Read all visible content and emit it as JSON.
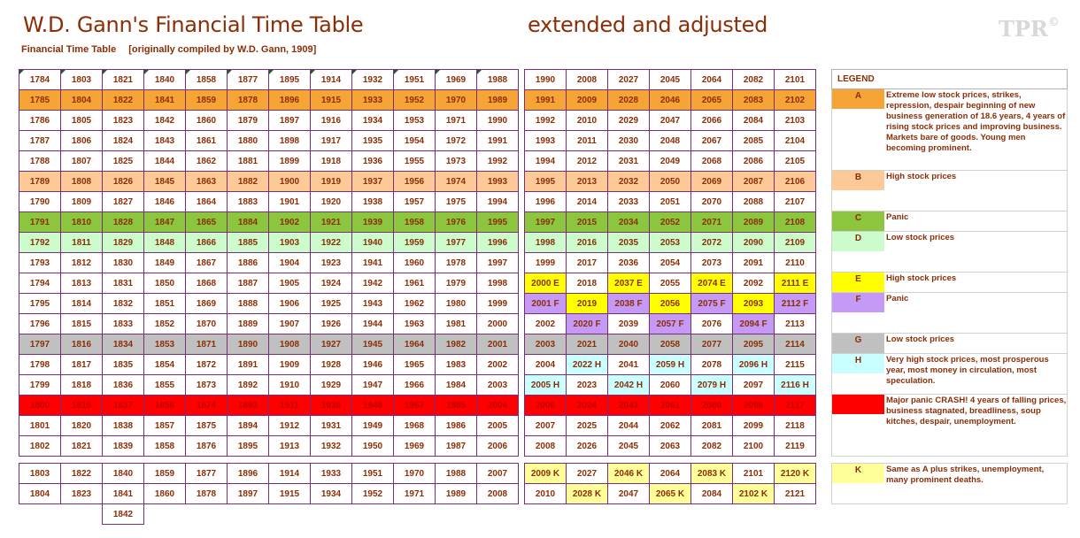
{
  "header": {
    "title": "W.D. Gann's Financial Time Table",
    "subtitle": "extended and adjusted",
    "caption_left": "Financial Time Table",
    "caption_right": "[originally compiled by W.D. Gann, 1909]",
    "logo": "TPR",
    "logo_mark": "©"
  },
  "colors": {
    "A": "#f7a436",
    "B": "#fcc997",
    "C": "#8cc63e",
    "D": "#ccfbcc",
    "E": "#ffff00",
    "F": "#c49af6",
    "G": "#c0c0c0",
    "H": "#c9ffff",
    "red": "#ff0000",
    "K": "#ffff99"
  },
  "left_table": {
    "rows": [
      {
        "cells": [
          "1784",
          "1803",
          "1821",
          "1840",
          "1858",
          "1877",
          "1895",
          "1914",
          "1932",
          "1951",
          "1969",
          "1988"
        ]
      },
      {
        "cells": [
          "1785",
          "1804",
          "1822",
          "1841",
          "1859",
          "1878",
          "1896",
          "1915",
          "1933",
          "1952",
          "1970",
          "1989"
        ]
      },
      {
        "cells": [
          "1786",
          "1805",
          "1823",
          "1842",
          "1860",
          "1879",
          "1897",
          "1916",
          "1934",
          "1953",
          "1971",
          "1990"
        ]
      },
      {
        "cells": [
          "1787",
          "1806",
          "1824",
          "1843",
          "1861",
          "1880",
          "1898",
          "1917",
          "1935",
          "1954",
          "1972",
          "1991"
        ]
      },
      {
        "cells": [
          "1788",
          "1807",
          "1825",
          "1844",
          "1862",
          "1881",
          "1899",
          "1918",
          "1936",
          "1955",
          "1973",
          "1992"
        ]
      },
      {
        "cells": [
          "1789",
          "1808",
          "1826",
          "1845",
          "1863",
          "1882",
          "1900",
          "1919",
          "1937",
          "1956",
          "1974",
          "1993"
        ]
      },
      {
        "cells": [
          "1790",
          "1809",
          "1827",
          "1846",
          "1864",
          "1883",
          "1901",
          "1920",
          "1938",
          "1957",
          "1975",
          "1994"
        ]
      },
      {
        "cells": [
          "1791",
          "1810",
          "1828",
          "1847",
          "1865",
          "1884",
          "1902",
          "1921",
          "1939",
          "1958",
          "1976",
          "1995"
        ]
      },
      {
        "cells": [
          "1792",
          "1811",
          "1829",
          "1848",
          "1866",
          "1885",
          "1903",
          "1922",
          "1940",
          "1959",
          "1977",
          "1996"
        ]
      },
      {
        "cells": [
          "1793",
          "1812",
          "1830",
          "1849",
          "1867",
          "1886",
          "1904",
          "1923",
          "1941",
          "1960",
          "1978",
          "1997"
        ]
      },
      {
        "cells": [
          "1794",
          "1813",
          "1831",
          "1850",
          "1868",
          "1887",
          "1905",
          "1924",
          "1942",
          "1961",
          "1979",
          "1998"
        ]
      },
      {
        "cells": [
          "1795",
          "1814",
          "1832",
          "1851",
          "1869",
          "1888",
          "1906",
          "1925",
          "1943",
          "1962",
          "1980",
          "1999"
        ]
      },
      {
        "cells": [
          "1796",
          "1815",
          "1833",
          "1852",
          "1870",
          "1889",
          "1907",
          "1926",
          "1944",
          "1963",
          "1981",
          "2000"
        ]
      },
      {
        "cells": [
          "1797",
          "1816",
          "1834",
          "1853",
          "1871",
          "1890",
          "1908",
          "1927",
          "1945",
          "1964",
          "1982",
          "2001"
        ]
      },
      {
        "cells": [
          "1798",
          "1817",
          "1835",
          "1854",
          "1872",
          "1891",
          "1909",
          "1928",
          "1946",
          "1965",
          "1983",
          "2002"
        ]
      },
      {
        "cells": [
          "1799",
          "1818",
          "1836",
          "1855",
          "1873",
          "1892",
          "1910",
          "1929",
          "1947",
          "1966",
          "1984",
          "2003"
        ]
      },
      {
        "cells": [
          "1800",
          "1819",
          "1837",
          "1856",
          "1874",
          "1893",
          "1911",
          "1930",
          "1948",
          "1967",
          "1985",
          "2004"
        ]
      },
      {
        "cells": [
          "1801",
          "1820",
          "1838",
          "1857",
          "1875",
          "1894",
          "1912",
          "1931",
          "1949",
          "1968",
          "1986",
          "2005"
        ]
      },
      {
        "cells": [
          "1802",
          "1821",
          "1839",
          "1858",
          "1876",
          "1895",
          "1913",
          "1932",
          "1950",
          "1969",
          "1987",
          "2006"
        ]
      }
    ],
    "bottom_rows": [
      {
        "cells": [
          "1803",
          "1822",
          "1840",
          "1859",
          "1877",
          "1896",
          "1914",
          "1933",
          "1951",
          "1970",
          "1988",
          "2007"
        ]
      },
      {
        "cells": [
          "1804",
          "1823",
          "1841",
          "1860",
          "1878",
          "1897",
          "1915",
          "1934",
          "1952",
          "1971",
          "1989",
          "2008"
        ]
      },
      {
        "cells": [
          "",
          "",
          "1842",
          "",
          "",
          "",
          "",
          "",
          "",
          "",
          "",
          ""
        ]
      }
    ]
  },
  "right_table": {
    "rows": [
      {
        "cells": [
          "1990",
          "2008",
          "2027",
          "2045",
          "2064",
          "2082",
          "2101"
        ]
      },
      {
        "cells": [
          "1991",
          "2009",
          "2028",
          "2046",
          "2065",
          "2083",
          "2102"
        ]
      },
      {
        "cells": [
          "1992",
          "2010",
          "2029",
          "2047",
          "2066",
          "2084",
          "2103"
        ]
      },
      {
        "cells": [
          "1993",
          "2011",
          "2030",
          "2048",
          "2067",
          "2085",
          "2104"
        ]
      },
      {
        "cells": [
          "1994",
          "2012",
          "2031",
          "2049",
          "2068",
          "2086",
          "2105"
        ]
      },
      {
        "cells": [
          "1995",
          "2013",
          "2032",
          "2050",
          "2069",
          "2087",
          "2106"
        ]
      },
      {
        "cells": [
          "1996",
          "2014",
          "2033",
          "2051",
          "2070",
          "2088",
          "2107"
        ]
      },
      {
        "cells": [
          "1997",
          "2015",
          "2034",
          "2052",
          "2071",
          "2089",
          "2108"
        ]
      },
      {
        "cells": [
          "1998",
          "2016",
          "2035",
          "2053",
          "2072",
          "2090",
          "2109"
        ]
      },
      {
        "cells": [
          "1999",
          "2017",
          "2036",
          "2054",
          "2073",
          "2091",
          "2110"
        ]
      },
      {
        "cells": [
          "2000 E",
          "2018",
          "2037 E",
          "2055",
          "2074 E",
          "2092",
          "2111 E"
        ]
      },
      {
        "cells": [
          "2001 F",
          "2019",
          "2038 F",
          "2056",
          "2075 F",
          "2093",
          "2112 F"
        ]
      },
      {
        "cells": [
          "2002",
          "2020 F",
          "2039",
          "2057 F",
          "2076",
          "2094 F",
          "2113"
        ]
      },
      {
        "cells": [
          "2003",
          "2021",
          "2040",
          "2058",
          "2077",
          "2095",
          "2114"
        ]
      },
      {
        "cells": [
          "2004",
          "2022 H",
          "2041",
          "2059 H",
          "2078",
          "2096 H",
          "2115"
        ]
      },
      {
        "cells": [
          "2005 H",
          "2023",
          "2042 H",
          "2060",
          "2079 H",
          "2097",
          "2116 H"
        ]
      },
      {
        "cells": [
          "2006",
          "2024",
          "2043",
          "2061",
          "2080",
          "2098",
          "2117"
        ]
      },
      {
        "cells": [
          "2007",
          "2025",
          "2044",
          "2062",
          "2081",
          "2099",
          "2118"
        ]
      },
      {
        "cells": [
          "2008",
          "2026",
          "2045",
          "2063",
          "2082",
          "2100",
          "2119"
        ]
      }
    ],
    "bottom_rows": [
      {
        "cells": [
          "2009 K",
          "2027",
          "2046 K",
          "2064",
          "2083 K",
          "2101",
          "2120 K"
        ]
      },
      {
        "cells": [
          "2010",
          "2028 K",
          "2047",
          "2065 K",
          "2084",
          "2102 K",
          "2121"
        ]
      }
    ]
  },
  "legend": {
    "heading": "LEGEND",
    "items": [
      {
        "key": "A",
        "text": "Extreme low stock prices, strikes, repression, despair beginning of new business generation of 18.6 years, 4 years of rising stock prices and improving business. Markets bare of goods. Young men becoming prominent."
      },
      {
        "key": "B",
        "text": "High stock prices"
      },
      {
        "key": "C",
        "text": "Panic"
      },
      {
        "key": "D",
        "text": "Low stock prices"
      },
      {
        "key": "E",
        "text": "High stock prices"
      },
      {
        "key": "F",
        "text": "Panic"
      },
      {
        "key": "G",
        "text": "Low stock prices"
      },
      {
        "key": "H",
        "text": "Very high stock prices, most prosperous year, most money in circulation, most speculation."
      },
      {
        "key": "",
        "text": "Major panic CRASH! 4 years of falling prices, business stagnated, breadliness, soup kitches, despair, unemployment."
      },
      {
        "key": "K",
        "text": "Same as A plus strikes, unemployment, many prominent deaths."
      }
    ]
  }
}
